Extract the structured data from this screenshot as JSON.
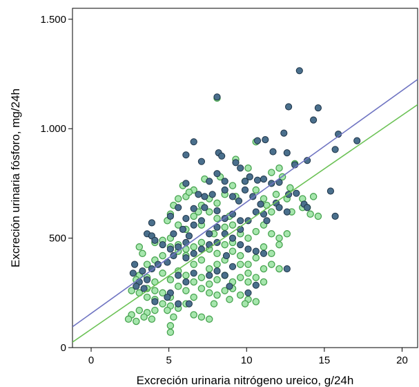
{
  "chart_data": {
    "type": "scatter",
    "title": "",
    "xlabel": "Excreción urinaria nitrógeno ureico, g/24h",
    "ylabel": "Excreción urinaria fósforo, mg/24h",
    "xlim": [
      -1.2,
      21
    ],
    "ylim": [
      0,
      1550
    ],
    "x_ticks": [
      0,
      5,
      10,
      15,
      20
    ],
    "x_tick_labels": [
      "0",
      "5",
      "10",
      "15",
      "20"
    ],
    "y_ticks": [
      0,
      500,
      1000,
      1500
    ],
    "y_tick_labels": [
      "0",
      "500",
      "1.000",
      "1.500"
    ],
    "grid": false,
    "legend": "none",
    "series": [
      {
        "marker": "filled-circle",
        "color": "#4a6f8c",
        "edge_color": "#1e3448",
        "fit_line": {
          "color": "#6f74c2",
          "x": [
            -1.2,
            21
          ],
          "y": [
            95,
            1225
          ]
        },
        "points": [
          [
            13.4,
            1265
          ],
          [
            8.1,
            1145
          ],
          [
            12.7,
            1100
          ],
          [
            14.6,
            1095
          ],
          [
            11.2,
            950
          ],
          [
            10.7,
            945
          ],
          [
            12.4,
            980
          ],
          [
            14.3,
            1040
          ],
          [
            15.9,
            975
          ],
          [
            17.1,
            945
          ],
          [
            15.7,
            905
          ],
          [
            11.7,
            895
          ],
          [
            12.6,
            890
          ],
          [
            13.9,
            855
          ],
          [
            13.1,
            835
          ],
          [
            6.1,
            880
          ],
          [
            6.6,
            940
          ],
          [
            8.2,
            890
          ],
          [
            8.4,
            875
          ],
          [
            7.1,
            850
          ],
          [
            9.3,
            845
          ],
          [
            9.6,
            820
          ],
          [
            10.2,
            780
          ],
          [
            10.7,
            765
          ],
          [
            11.1,
            770
          ],
          [
            11.6,
            750
          ],
          [
            12.1,
            755
          ],
          [
            12.7,
            700
          ],
          [
            13.2,
            705
          ],
          [
            13.7,
            655
          ],
          [
            13.9,
            640
          ],
          [
            15.4,
            715
          ],
          [
            15.7,
            600
          ],
          [
            11.9,
            660
          ],
          [
            12.1,
            640
          ],
          [
            8.1,
            795
          ],
          [
            7.6,
            760
          ],
          [
            6.1,
            750
          ],
          [
            6.9,
            700
          ],
          [
            7.3,
            690
          ],
          [
            7.8,
            700
          ],
          [
            8.6,
            720
          ],
          [
            9.1,
            690
          ],
          [
            9.5,
            670
          ],
          [
            9.9,
            720
          ],
          [
            10.4,
            690
          ],
          [
            10.9,
            655
          ],
          [
            8.6,
            760
          ],
          [
            9.9,
            760
          ],
          [
            7.3,
            640
          ],
          [
            6.6,
            635
          ],
          [
            5.6,
            640
          ],
          [
            5.1,
            600
          ],
          [
            6.1,
            590
          ],
          [
            6.6,
            560
          ],
          [
            7.1,
            580
          ],
          [
            8.1,
            625
          ],
          [
            8.6,
            590
          ],
          [
            9.1,
            610
          ],
          [
            10.1,
            580
          ],
          [
            10.6,
            620
          ],
          [
            11.1,
            610
          ],
          [
            9.6,
            540
          ],
          [
            8.1,
            550
          ],
          [
            7.6,
            520
          ],
          [
            5.9,
            540
          ],
          [
            5.3,
            520
          ],
          [
            6.3,
            510
          ],
          [
            3.9,
            570
          ],
          [
            3.6,
            520
          ],
          [
            3.9,
            510
          ],
          [
            4.1,
            490
          ],
          [
            4.6,
            470
          ],
          [
            5.1,
            450
          ],
          [
            5.6,
            460
          ],
          [
            6.1,
            480
          ],
          [
            6.6,
            430
          ],
          [
            7.1,
            450
          ],
          [
            7.6,
            470
          ],
          [
            8.1,
            480
          ],
          [
            8.6,
            520
          ],
          [
            9.1,
            500
          ],
          [
            9.6,
            470
          ],
          [
            10.1,
            450
          ],
          [
            10.6,
            440
          ],
          [
            11.1,
            430
          ],
          [
            6.1,
            410
          ],
          [
            5.3,
            420
          ],
          [
            4.9,
            390
          ],
          [
            4.3,
            380
          ],
          [
            3.9,
            360
          ],
          [
            3.3,
            350
          ],
          [
            2.8,
            380
          ],
          [
            2.7,
            340
          ],
          [
            3.1,
            300
          ],
          [
            2.9,
            280
          ],
          [
            3.4,
            270
          ],
          [
            3.6,
            310
          ],
          [
            5.6,
            330
          ],
          [
            6.6,
            340
          ],
          [
            7.6,
            330
          ],
          [
            8.1,
            350
          ],
          [
            8.6,
            330
          ],
          [
            9.1,
            370
          ],
          [
            6.1,
            300
          ],
          [
            5.1,
            250
          ],
          [
            6.3,
            200
          ],
          [
            4.9,
            230
          ],
          [
            4.1,
            210
          ],
          [
            5.6,
            200
          ],
          [
            8.9,
            280
          ],
          [
            10.1,
            250
          ],
          [
            10.6,
            285
          ],
          [
            12.6,
            360
          ],
          [
            11.3,
            580
          ],
          [
            12.6,
            620
          ],
          [
            9.6,
            580
          ],
          [
            8.7,
            420
          ]
        ]
      },
      {
        "marker": "open-circle",
        "color": "#a6e6ad",
        "edge_color": "#46a24e",
        "fit_line": {
          "color": "#6cc256",
          "x": [
            -1.2,
            21
          ],
          "y": [
            25,
            1110
          ]
        },
        "points": [
          [
            8.1,
            1140
          ],
          [
            10.6,
            940
          ],
          [
            9.3,
            860
          ],
          [
            10.1,
            820
          ],
          [
            12.1,
            820
          ],
          [
            13.1,
            840
          ],
          [
            11.6,
            800
          ],
          [
            12.3,
            780
          ],
          [
            12.8,
            730
          ],
          [
            13.6,
            680
          ],
          [
            14.3,
            690
          ],
          [
            14.6,
            600
          ],
          [
            13.9,
            640
          ],
          [
            12.9,
            620
          ],
          [
            11.6,
            620
          ],
          [
            11.1,
            680
          ],
          [
            10.6,
            720
          ],
          [
            9.9,
            760
          ],
          [
            9.1,
            740
          ],
          [
            8.6,
            700
          ],
          [
            8.1,
            660
          ],
          [
            7.6,
            680
          ],
          [
            7.1,
            650
          ],
          [
            6.6,
            720
          ],
          [
            6.1,
            690
          ],
          [
            5.6,
            680
          ],
          [
            5.3,
            650
          ],
          [
            5.1,
            610
          ],
          [
            4.9,
            580
          ],
          [
            5.6,
            560
          ],
          [
            6.1,
            540
          ],
          [
            6.6,
            600
          ],
          [
            7.1,
            560
          ],
          [
            7.6,
            620
          ],
          [
            8.1,
            590
          ],
          [
            8.6,
            550
          ],
          [
            9.1,
            560
          ],
          [
            9.6,
            520
          ],
          [
            10.1,
            500
          ],
          [
            10.6,
            530
          ],
          [
            11.1,
            560
          ],
          [
            11.6,
            520
          ],
          [
            12.1,
            500
          ],
          [
            12.6,
            520
          ],
          [
            12.1,
            470
          ],
          [
            11.6,
            430
          ],
          [
            11.1,
            460
          ],
          [
            10.6,
            410
          ],
          [
            10.1,
            380
          ],
          [
            9.6,
            420
          ],
          [
            9.1,
            440
          ],
          [
            8.6,
            400
          ],
          [
            8.1,
            380
          ],
          [
            7.6,
            360
          ],
          [
            7.1,
            400
          ],
          [
            6.6,
            380
          ],
          [
            6.1,
            420
          ],
          [
            5.6,
            440
          ],
          [
            5.1,
            460
          ],
          [
            4.6,
            420
          ],
          [
            4.1,
            400
          ],
          [
            3.6,
            380
          ],
          [
            3.3,
            430
          ],
          [
            3.1,
            460
          ],
          [
            4.1,
            480
          ],
          [
            4.6,
            490
          ],
          [
            5.1,
            500
          ],
          [
            5.6,
            470
          ],
          [
            6.1,
            450
          ],
          [
            6.6,
            460
          ],
          [
            7.1,
            480
          ],
          [
            7.6,
            450
          ],
          [
            8.1,
            430
          ],
          [
            8.6,
            470
          ],
          [
            9.1,
            480
          ],
          [
            9.6,
            380
          ],
          [
            10.1,
            340
          ],
          [
            10.6,
            320
          ],
          [
            11.1,
            360
          ],
          [
            11.6,
            380
          ],
          [
            12.1,
            360
          ],
          [
            11.1,
            300
          ],
          [
            10.1,
            300
          ],
          [
            9.6,
            320
          ],
          [
            9.1,
            300
          ],
          [
            8.6,
            330
          ],
          [
            8.1,
            310
          ],
          [
            7.6,
            290
          ],
          [
            7.1,
            320
          ],
          [
            6.6,
            300
          ],
          [
            6.1,
            330
          ],
          [
            5.6,
            350
          ],
          [
            5.1,
            310
          ],
          [
            4.6,
            340
          ],
          [
            4.1,
            300
          ],
          [
            3.6,
            320
          ],
          [
            3.1,
            330
          ],
          [
            2.9,
            310
          ],
          [
            2.6,
            260
          ],
          [
            3.1,
            250
          ],
          [
            3.6,
            270
          ],
          [
            4.1,
            260
          ],
          [
            4.6,
            250
          ],
          [
            5.1,
            230
          ],
          [
            5.6,
            280
          ],
          [
            6.1,
            260
          ],
          [
            6.6,
            230
          ],
          [
            7.1,
            270
          ],
          [
            7.6,
            250
          ],
          [
            8.1,
            240
          ],
          [
            8.6,
            260
          ],
          [
            9.1,
            270
          ],
          [
            9.6,
            240
          ],
          [
            10.1,
            220
          ],
          [
            10.6,
            210
          ],
          [
            3.6,
            230
          ],
          [
            4.1,
            220
          ],
          [
            4.6,
            200
          ],
          [
            5.1,
            190
          ],
          [
            5.6,
            180
          ],
          [
            4.1,
            170
          ],
          [
            3.6,
            160
          ],
          [
            3.1,
            170
          ],
          [
            2.6,
            150
          ],
          [
            2.4,
            130
          ],
          [
            2.9,
            120
          ],
          [
            3.4,
            140
          ],
          [
            3.9,
            130
          ],
          [
            4.9,
            170
          ],
          [
            5.3,
            140
          ],
          [
            5.1,
            100
          ],
          [
            5.1,
            70
          ],
          [
            6.6,
            150
          ],
          [
            7.1,
            140
          ],
          [
            7.6,
            130
          ],
          [
            6.1,
            200
          ],
          [
            7.9,
            200
          ],
          [
            8.9,
            220
          ],
          [
            9.9,
            200
          ],
          [
            14.1,
            610
          ],
          [
            13.6,
            640
          ],
          [
            12.6,
            680
          ],
          [
            11.9,
            700
          ],
          [
            11.3,
            650
          ],
          [
            9.3,
            690
          ],
          [
            8.3,
            780
          ],
          [
            7.3,
            770
          ],
          [
            6.3,
            710
          ],
          [
            5.9,
            740
          ],
          [
            6.9,
            620
          ],
          [
            7.9,
            520
          ],
          [
            8.9,
            600
          ]
        ]
      }
    ]
  }
}
